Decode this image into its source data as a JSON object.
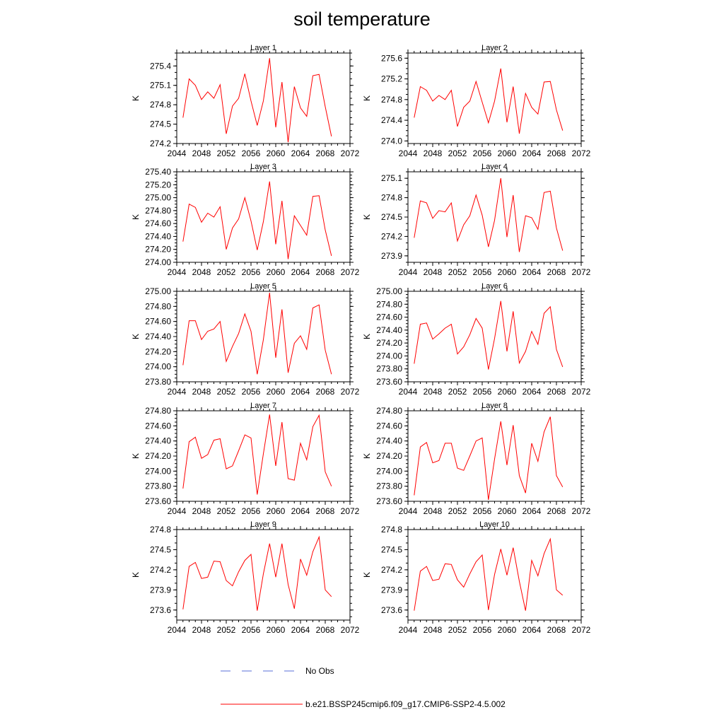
{
  "title": "soil temperature",
  "ylabel": "K",
  "line_color": "#ff0000",
  "obs_color": "#5a6fd8",
  "legend": {
    "obs_label": "No Obs",
    "model_label": "b.e21.BSSP245cmip6.f09_g17.CMIP6-SSP2-4.5.002"
  },
  "chart_data": [
    {
      "type": "line",
      "title": "Layer 1",
      "xlim": [
        2044,
        2072
      ],
      "ylim": [
        274.2,
        275.6
      ],
      "xticks": [
        2044,
        2048,
        2052,
        2056,
        2060,
        2064,
        2068,
        2072
      ],
      "yticks": [
        "274.2",
        "274.5",
        "274.8",
        "275.1",
        "275.4"
      ],
      "x": [
        2045,
        2046,
        2047,
        2048,
        2049,
        2050,
        2051,
        2052,
        2053,
        2054,
        2055,
        2056,
        2057,
        2058,
        2059,
        2060,
        2061,
        2062,
        2063,
        2064,
        2065,
        2066,
        2067,
        2068,
        2069
      ],
      "values": [
        274.6,
        275.2,
        275.1,
        274.88,
        275.0,
        274.9,
        275.11,
        274.35,
        274.78,
        274.9,
        275.28,
        274.86,
        274.48,
        274.86,
        275.52,
        274.45,
        275.15,
        274.22,
        275.08,
        274.75,
        274.62,
        275.25,
        275.27,
        274.77,
        274.31
      ]
    },
    {
      "type": "line",
      "title": "Layer 2",
      "xlim": [
        2044,
        2072
      ],
      "ylim": [
        273.95,
        275.7
      ],
      "xticks": [
        2044,
        2048,
        2052,
        2056,
        2060,
        2064,
        2068,
        2072
      ],
      "yticks": [
        "274.0",
        "274.4",
        "274.8",
        "275.2",
        "275.6"
      ],
      "x": [
        2045,
        2046,
        2047,
        2048,
        2049,
        2050,
        2051,
        2052,
        2053,
        2054,
        2055,
        2056,
        2057,
        2058,
        2059,
        2060,
        2061,
        2062,
        2063,
        2064,
        2065,
        2066,
        2067,
        2068,
        2069
      ],
      "values": [
        274.45,
        275.05,
        274.98,
        274.77,
        274.88,
        274.8,
        274.98,
        274.28,
        274.65,
        274.77,
        275.15,
        274.75,
        274.35,
        274.77,
        275.4,
        274.36,
        275.05,
        274.14,
        274.92,
        274.65,
        274.52,
        275.14,
        275.15,
        274.6,
        274.2
      ]
    },
    {
      "type": "line",
      "title": "Layer 3",
      "xlim": [
        2044,
        2072
      ],
      "ylim": [
        274.0,
        275.4
      ],
      "xticks": [
        2044,
        2048,
        2052,
        2056,
        2060,
        2064,
        2068,
        2072
      ],
      "yticks": [
        "274.00",
        "274.20",
        "274.40",
        "274.60",
        "274.80",
        "275.00",
        "275.20",
        "275.40"
      ],
      "x": [
        2045,
        2046,
        2047,
        2048,
        2049,
        2050,
        2051,
        2052,
        2053,
        2054,
        2055,
        2056,
        2057,
        2058,
        2059,
        2060,
        2061,
        2062,
        2063,
        2064,
        2065,
        2066,
        2067,
        2068,
        2069
      ],
      "values": [
        274.32,
        274.9,
        274.85,
        274.62,
        274.76,
        274.7,
        274.86,
        274.2,
        274.53,
        274.67,
        275.0,
        274.64,
        274.19,
        274.63,
        275.25,
        274.28,
        274.95,
        274.05,
        274.72,
        274.57,
        274.42,
        275.02,
        275.03,
        274.5,
        274.1
      ]
    },
    {
      "type": "line",
      "title": "Layer 4",
      "xlim": [
        2044,
        2072
      ],
      "ylim": [
        273.8,
        275.2
      ],
      "xticks": [
        2044,
        2048,
        2052,
        2056,
        2060,
        2064,
        2068,
        2072
      ],
      "yticks": [
        "273.9",
        "274.2",
        "274.5",
        "274.8",
        "275.1"
      ],
      "x": [
        2045,
        2046,
        2047,
        2048,
        2049,
        2050,
        2051,
        2052,
        2053,
        2054,
        2055,
        2056,
        2057,
        2058,
        2059,
        2060,
        2061,
        2062,
        2063,
        2064,
        2065,
        2066,
        2067,
        2068,
        2069
      ],
      "values": [
        274.18,
        274.75,
        274.72,
        274.48,
        274.6,
        274.58,
        274.72,
        274.13,
        274.38,
        274.52,
        274.84,
        274.53,
        274.04,
        274.45,
        275.1,
        274.19,
        274.84,
        273.96,
        274.52,
        274.49,
        274.31,
        274.88,
        274.9,
        274.33,
        273.98
      ]
    },
    {
      "type": "line",
      "title": "Layer 5",
      "xlim": [
        2044,
        2072
      ],
      "ylim": [
        273.8,
        275.0
      ],
      "xticks": [
        2044,
        2048,
        2052,
        2056,
        2060,
        2064,
        2068,
        2072
      ],
      "yticks": [
        "273.80",
        "274.00",
        "274.20",
        "274.40",
        "274.60",
        "274.80",
        "275.00"
      ],
      "x": [
        2045,
        2046,
        2047,
        2048,
        2049,
        2050,
        2051,
        2052,
        2053,
        2054,
        2055,
        2056,
        2057,
        2058,
        2059,
        2060,
        2061,
        2062,
        2063,
        2064,
        2065,
        2066,
        2067,
        2068,
        2069
      ],
      "values": [
        274.02,
        274.61,
        274.61,
        274.36,
        274.47,
        274.5,
        274.6,
        274.07,
        274.27,
        274.44,
        274.7,
        274.47,
        273.9,
        274.36,
        274.98,
        274.12,
        274.76,
        273.92,
        274.31,
        274.41,
        274.23,
        274.78,
        274.82,
        274.22,
        273.9
      ]
    },
    {
      "type": "line",
      "title": "Layer 6",
      "xlim": [
        2044,
        2072
      ],
      "ylim": [
        273.6,
        275.0
      ],
      "xticks": [
        2044,
        2048,
        2052,
        2056,
        2060,
        2064,
        2068,
        2072
      ],
      "yticks": [
        "273.60",
        "273.80",
        "274.00",
        "274.20",
        "274.40",
        "274.60",
        "274.80",
        "275.00"
      ],
      "x": [
        2045,
        2046,
        2047,
        2048,
        2049,
        2050,
        2051,
        2052,
        2053,
        2054,
        2055,
        2056,
        2057,
        2058,
        2059,
        2060,
        2061,
        2062,
        2063,
        2064,
        2065,
        2066,
        2067,
        2068,
        2069
      ],
      "values": [
        273.88,
        274.49,
        274.51,
        274.26,
        274.34,
        274.43,
        274.49,
        274.03,
        274.14,
        274.33,
        274.58,
        274.43,
        273.79,
        274.27,
        274.85,
        274.07,
        274.69,
        273.89,
        274.07,
        274.38,
        274.18,
        274.66,
        274.76,
        274.1,
        273.83
      ]
    },
    {
      "type": "line",
      "title": "Layer 7",
      "xlim": [
        2044,
        2072
      ],
      "ylim": [
        273.6,
        274.8
      ],
      "xticks": [
        2044,
        2048,
        2052,
        2056,
        2060,
        2064,
        2068,
        2072
      ],
      "yticks": [
        "273.60",
        "273.80",
        "274.00",
        "274.20",
        "274.40",
        "274.60",
        "274.80"
      ],
      "x": [
        2045,
        2046,
        2047,
        2048,
        2049,
        2050,
        2051,
        2052,
        2053,
        2054,
        2055,
        2056,
        2057,
        2058,
        2059,
        2060,
        2061,
        2062,
        2063,
        2064,
        2065,
        2066,
        2067,
        2068,
        2069
      ],
      "values": [
        273.77,
        274.39,
        274.45,
        274.17,
        274.22,
        274.41,
        274.43,
        274.03,
        274.07,
        274.27,
        274.48,
        274.44,
        273.69,
        274.23,
        274.75,
        274.07,
        274.65,
        273.9,
        273.88,
        274.37,
        274.15,
        274.59,
        274.74,
        273.99,
        273.8
      ]
    },
    {
      "type": "line",
      "title": "Layer 8",
      "xlim": [
        2044,
        2072
      ],
      "ylim": [
        273.6,
        274.8
      ],
      "xticks": [
        2044,
        2048,
        2052,
        2056,
        2060,
        2064,
        2068,
        2072
      ],
      "yticks": [
        "273.60",
        "273.80",
        "274.00",
        "274.20",
        "274.40",
        "274.60",
        "274.80"
      ],
      "x": [
        2045,
        2046,
        2047,
        2048,
        2049,
        2050,
        2051,
        2052,
        2053,
        2054,
        2055,
        2056,
        2057,
        2058,
        2059,
        2060,
        2061,
        2062,
        2063,
        2064,
        2065,
        2066,
        2067,
        2068,
        2069
      ],
      "values": [
        273.68,
        274.32,
        274.38,
        274.11,
        274.14,
        274.37,
        274.37,
        274.04,
        274.01,
        274.2,
        274.4,
        274.44,
        273.62,
        274.16,
        274.66,
        274.08,
        274.61,
        273.94,
        273.71,
        274.37,
        274.13,
        274.52,
        274.72,
        273.94,
        273.79
      ]
    },
    {
      "type": "line",
      "title": "Layer 9",
      "xlim": [
        2044,
        2072
      ],
      "ylim": [
        273.45,
        274.8
      ],
      "xticks": [
        2044,
        2048,
        2052,
        2056,
        2060,
        2064,
        2068,
        2072
      ],
      "yticks": [
        "273.6",
        "273.9",
        "274.2",
        "274.5",
        "274.8"
      ],
      "x": [
        2045,
        2046,
        2047,
        2048,
        2049,
        2050,
        2051,
        2052,
        2053,
        2054,
        2055,
        2056,
        2057,
        2058,
        2059,
        2060,
        2061,
        2062,
        2063,
        2064,
        2065,
        2066,
        2067,
        2068,
        2069
      ],
      "values": [
        273.61,
        274.25,
        274.31,
        274.07,
        274.09,
        274.33,
        274.32,
        274.04,
        273.96,
        274.17,
        274.34,
        274.43,
        273.59,
        274.14,
        274.59,
        274.09,
        274.59,
        273.98,
        273.62,
        274.36,
        274.12,
        274.47,
        274.69,
        273.9,
        273.8
      ]
    },
    {
      "type": "line",
      "title": "Layer 10",
      "xlim": [
        2044,
        2072
      ],
      "ylim": [
        273.45,
        274.8
      ],
      "xticks": [
        2044,
        2048,
        2052,
        2056,
        2060,
        2064,
        2068,
        2072
      ],
      "yticks": [
        "273.6",
        "273.9",
        "274.2",
        "274.5",
        "274.8"
      ],
      "x": [
        2045,
        2046,
        2047,
        2048,
        2049,
        2050,
        2051,
        2052,
        2053,
        2054,
        2055,
        2056,
        2057,
        2058,
        2059,
        2060,
        2061,
        2062,
        2063,
        2064,
        2065,
        2066,
        2067,
        2068,
        2069
      ],
      "values": [
        273.59,
        274.18,
        274.25,
        274.04,
        274.06,
        274.29,
        274.28,
        274.05,
        273.94,
        274.14,
        274.32,
        274.42,
        273.6,
        274.13,
        274.51,
        274.12,
        274.53,
        274.03,
        273.59,
        274.34,
        274.11,
        274.44,
        274.66,
        273.9,
        273.82
      ]
    }
  ]
}
